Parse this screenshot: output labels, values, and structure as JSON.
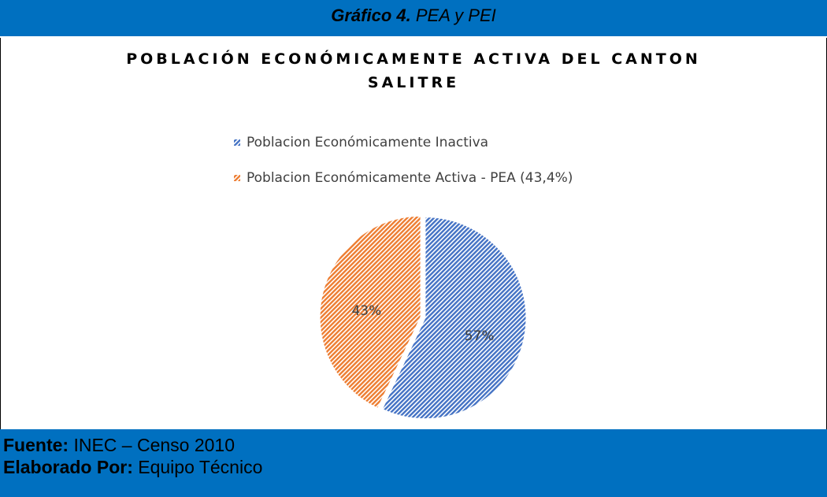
{
  "header": {
    "label": "Gráfico 4.",
    "title": "PEA y PEI"
  },
  "chart_data": {
    "type": "pie",
    "title": "POBLACIÓN ECONÓMICAMENTE ACTIVA DEL CANTON SALITRE",
    "categories": [
      "Poblacion Económicamente Inactiva",
      "Poblacion Económicamente Activa - PEA (43,4%)"
    ],
    "values": [
      57,
      43
    ],
    "value_labels": [
      "57%",
      "43%"
    ],
    "colors": [
      "#4472c4",
      "#ed7d31"
    ],
    "legend": "top"
  },
  "footer": {
    "source_label": "Fuente:",
    "source": "INEC – Censo 2010",
    "author_label": "Elaborado Por:",
    "author": "Equipo Técnico"
  }
}
